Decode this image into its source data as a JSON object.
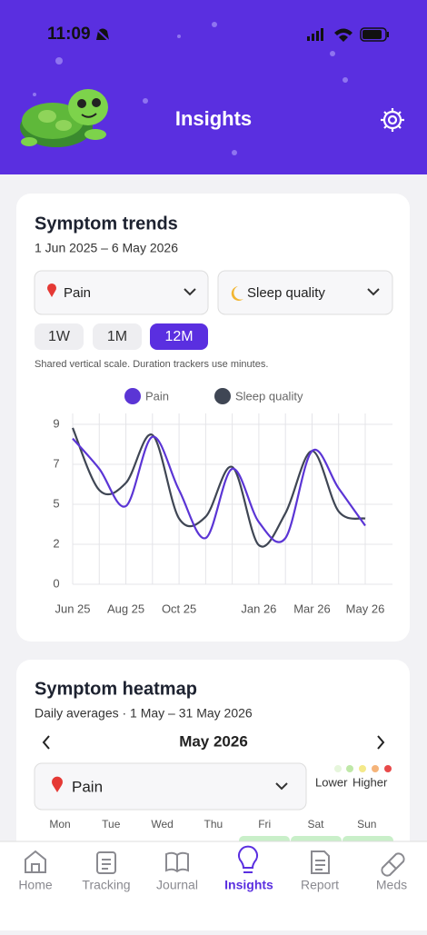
{
  "status_bar": {
    "time": "11:09"
  },
  "header": {
    "title": "Insights"
  },
  "trends": {
    "title": "Symptom trends",
    "date_range": "1 Jun 2025 – 6 May 2026",
    "selectors": [
      "Pain",
      "Sleep quality"
    ],
    "ranges": [
      "1W",
      "1M",
      "12M"
    ],
    "note": "Shared vertical scale. Duration trackers use minutes.",
    "chart": {
      "type": "line",
      "categories": [
        "Jun 25",
        null,
        "Aug 25",
        null,
        "Oct 25",
        null,
        null,
        "Jan 26",
        null,
        "Mar 26",
        null,
        "May 26"
      ],
      "series": [
        {
          "name": "Pain",
          "color": "#5b35d5",
          "values": [
            8.2,
            6.5,
            4.4,
            8.3,
            5.3,
            2.6,
            6.5,
            3.5,
            2.6,
            7.5,
            5.4,
            3.3
          ]
        },
        {
          "name": "Sleep quality",
          "color": "#3f4654",
          "values": [
            8.8,
            5.3,
            5.7,
            8.4,
            3.7,
            3.8,
            6.6,
            2.2,
            4.0,
            7.5,
            4.1,
            3.7
          ]
        }
      ],
      "ylim": [
        0,
        9
      ],
      "yticks": [
        0,
        {
          "value": 2.25,
          "label": "2"
        },
        {
          "value": 4.5,
          "label": "5"
        },
        {
          "value": 6.75,
          "label": "7"
        },
        9
      ],
      "grid": true
    }
  },
  "heatmap": {
    "title": "Symptom heatmap",
    "subtitle": "Daily averages · 1 May – 31 May 2026",
    "month": "May 2026",
    "selector": "Pain",
    "legend_low": "Lower",
    "legend_high": "Higher",
    "weekdays": [
      "Mon",
      "Tue",
      "Wed",
      "Thu",
      "Fri",
      "Sat",
      "Sun"
    ]
  },
  "nav": [
    "Home",
    "Tracking",
    "Journal",
    "Insights",
    "Report",
    "Meds"
  ]
}
